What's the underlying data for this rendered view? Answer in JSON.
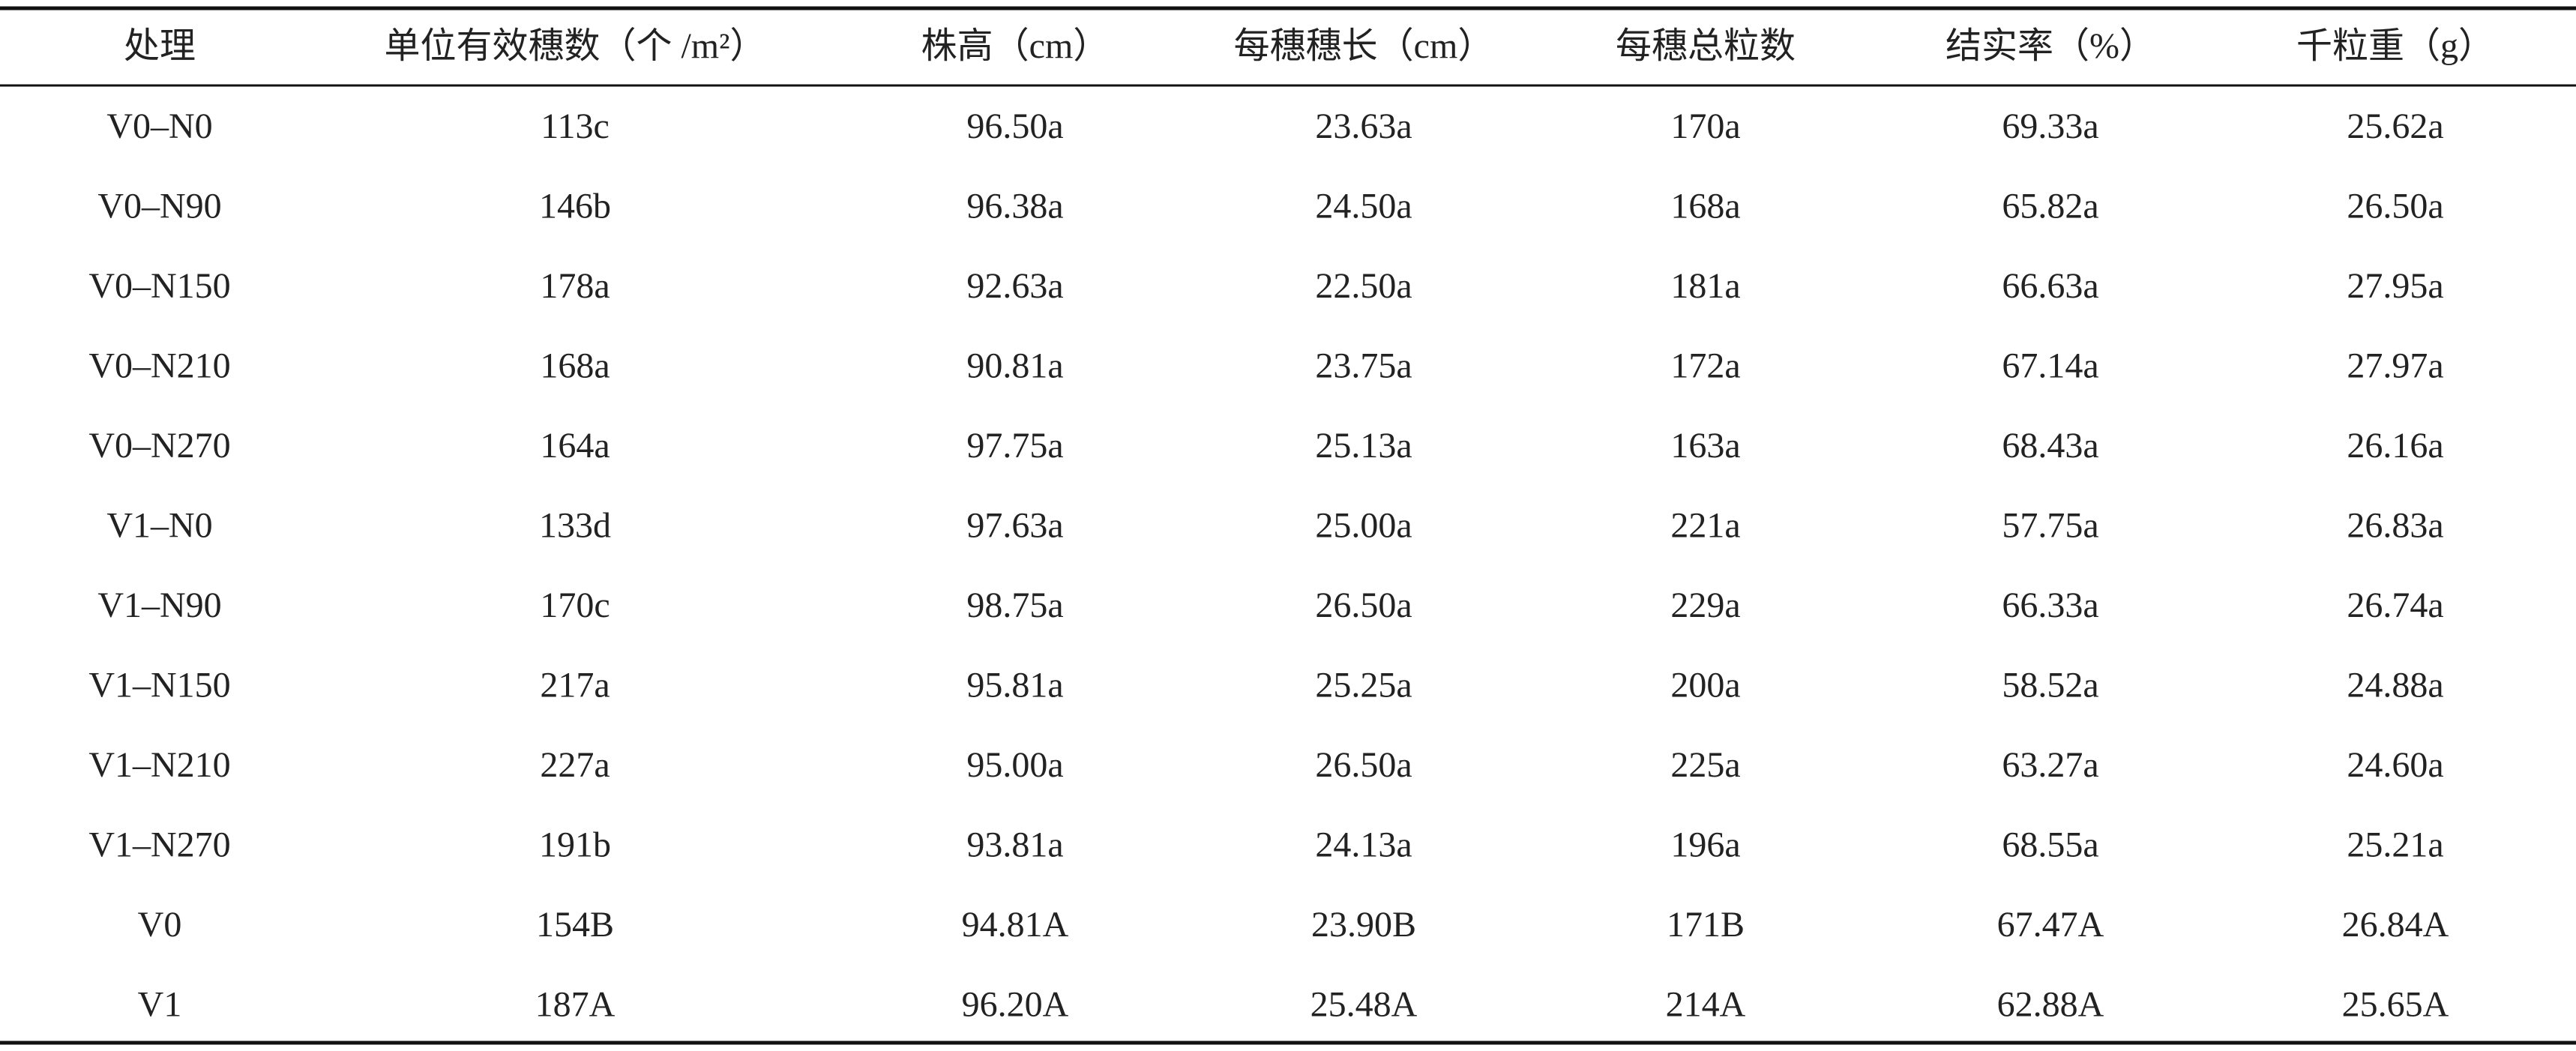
{
  "table": {
    "header": [
      "处理",
      "单位有效穗数（个 /m²）",
      "株高（cm）",
      "每穗穗长（cm）",
      "每穗总粒数",
      "结实率（%）",
      "千粒重（g）"
    ],
    "rows": [
      [
        "V0–N0",
        "113c",
        "96.50a",
        "23.63a",
        "170a",
        "69.33a",
        "25.62a"
      ],
      [
        "V0–N90",
        "146b",
        "96.38a",
        "24.50a",
        "168a",
        "65.82a",
        "26.50a"
      ],
      [
        "V0–N150",
        "178a",
        "92.63a",
        "22.50a",
        "181a",
        "66.63a",
        "27.95a"
      ],
      [
        "V0–N210",
        "168a",
        "90.81a",
        "23.75a",
        "172a",
        "67.14a",
        "27.97a"
      ],
      [
        "V0–N270",
        "164a",
        "97.75a",
        "25.13a",
        "163a",
        "68.43a",
        "26.16a"
      ],
      [
        "V1–N0",
        "133d",
        "97.63a",
        "25.00a",
        "221a",
        "57.75a",
        "26.83a"
      ],
      [
        "V1–N90",
        "170c",
        "98.75a",
        "26.50a",
        "229a",
        "66.33a",
        "26.74a"
      ],
      [
        "V1–N150",
        "217a",
        "95.81a",
        "25.25a",
        "200a",
        "58.52a",
        "24.88a"
      ],
      [
        "V1–N210",
        "227a",
        "95.00a",
        "26.50a",
        "225a",
        "63.27a",
        "24.60a"
      ],
      [
        "V1–N270",
        "191b",
        "93.81a",
        "24.13a",
        "196a",
        "68.55a",
        "25.21a"
      ],
      [
        "V0",
        "154B",
        "94.81A",
        "23.90B",
        "171B",
        "67.47A",
        "26.84A"
      ],
      [
        "V1",
        "187A",
        "96.20A",
        "25.48A",
        "214A",
        "62.88A",
        "25.65A"
      ]
    ]
  }
}
